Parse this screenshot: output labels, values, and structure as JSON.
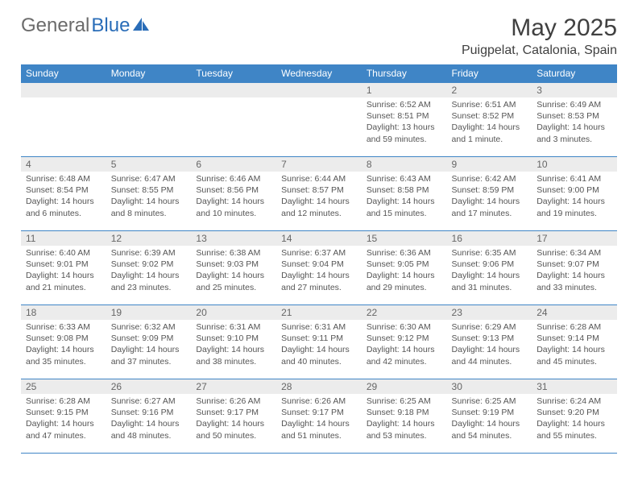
{
  "logo": {
    "text1": "General",
    "text2": "Blue"
  },
  "title": "May 2025",
  "location": "Puigpelat, Catalonia, Spain",
  "colors": {
    "header_bg": "#3f85c6",
    "header_text": "#ffffff",
    "daynum_bg": "#ececec",
    "daynum_text": "#666666",
    "border": "#3f85c6",
    "body_text": "#555555",
    "logo_gray": "#6b6b6b",
    "logo_blue": "#2a6db8",
    "title_color": "#404040"
  },
  "weekdays": [
    "Sunday",
    "Monday",
    "Tuesday",
    "Wednesday",
    "Thursday",
    "Friday",
    "Saturday"
  ],
  "weeks": [
    [
      null,
      null,
      null,
      null,
      {
        "n": "1",
        "sr": "Sunrise: 6:52 AM",
        "ss": "Sunset: 8:51 PM",
        "d1": "Daylight: 13 hours",
        "d2": "and 59 minutes."
      },
      {
        "n": "2",
        "sr": "Sunrise: 6:51 AM",
        "ss": "Sunset: 8:52 PM",
        "d1": "Daylight: 14 hours",
        "d2": "and 1 minute."
      },
      {
        "n": "3",
        "sr": "Sunrise: 6:49 AM",
        "ss": "Sunset: 8:53 PM",
        "d1": "Daylight: 14 hours",
        "d2": "and 3 minutes."
      }
    ],
    [
      {
        "n": "4",
        "sr": "Sunrise: 6:48 AM",
        "ss": "Sunset: 8:54 PM",
        "d1": "Daylight: 14 hours",
        "d2": "and 6 minutes."
      },
      {
        "n": "5",
        "sr": "Sunrise: 6:47 AM",
        "ss": "Sunset: 8:55 PM",
        "d1": "Daylight: 14 hours",
        "d2": "and 8 minutes."
      },
      {
        "n": "6",
        "sr": "Sunrise: 6:46 AM",
        "ss": "Sunset: 8:56 PM",
        "d1": "Daylight: 14 hours",
        "d2": "and 10 minutes."
      },
      {
        "n": "7",
        "sr": "Sunrise: 6:44 AM",
        "ss": "Sunset: 8:57 PM",
        "d1": "Daylight: 14 hours",
        "d2": "and 12 minutes."
      },
      {
        "n": "8",
        "sr": "Sunrise: 6:43 AM",
        "ss": "Sunset: 8:58 PM",
        "d1": "Daylight: 14 hours",
        "d2": "and 15 minutes."
      },
      {
        "n": "9",
        "sr": "Sunrise: 6:42 AM",
        "ss": "Sunset: 8:59 PM",
        "d1": "Daylight: 14 hours",
        "d2": "and 17 minutes."
      },
      {
        "n": "10",
        "sr": "Sunrise: 6:41 AM",
        "ss": "Sunset: 9:00 PM",
        "d1": "Daylight: 14 hours",
        "d2": "and 19 minutes."
      }
    ],
    [
      {
        "n": "11",
        "sr": "Sunrise: 6:40 AM",
        "ss": "Sunset: 9:01 PM",
        "d1": "Daylight: 14 hours",
        "d2": "and 21 minutes."
      },
      {
        "n": "12",
        "sr": "Sunrise: 6:39 AM",
        "ss": "Sunset: 9:02 PM",
        "d1": "Daylight: 14 hours",
        "d2": "and 23 minutes."
      },
      {
        "n": "13",
        "sr": "Sunrise: 6:38 AM",
        "ss": "Sunset: 9:03 PM",
        "d1": "Daylight: 14 hours",
        "d2": "and 25 minutes."
      },
      {
        "n": "14",
        "sr": "Sunrise: 6:37 AM",
        "ss": "Sunset: 9:04 PM",
        "d1": "Daylight: 14 hours",
        "d2": "and 27 minutes."
      },
      {
        "n": "15",
        "sr": "Sunrise: 6:36 AM",
        "ss": "Sunset: 9:05 PM",
        "d1": "Daylight: 14 hours",
        "d2": "and 29 minutes."
      },
      {
        "n": "16",
        "sr": "Sunrise: 6:35 AM",
        "ss": "Sunset: 9:06 PM",
        "d1": "Daylight: 14 hours",
        "d2": "and 31 minutes."
      },
      {
        "n": "17",
        "sr": "Sunrise: 6:34 AM",
        "ss": "Sunset: 9:07 PM",
        "d1": "Daylight: 14 hours",
        "d2": "and 33 minutes."
      }
    ],
    [
      {
        "n": "18",
        "sr": "Sunrise: 6:33 AM",
        "ss": "Sunset: 9:08 PM",
        "d1": "Daylight: 14 hours",
        "d2": "and 35 minutes."
      },
      {
        "n": "19",
        "sr": "Sunrise: 6:32 AM",
        "ss": "Sunset: 9:09 PM",
        "d1": "Daylight: 14 hours",
        "d2": "and 37 minutes."
      },
      {
        "n": "20",
        "sr": "Sunrise: 6:31 AM",
        "ss": "Sunset: 9:10 PM",
        "d1": "Daylight: 14 hours",
        "d2": "and 38 minutes."
      },
      {
        "n": "21",
        "sr": "Sunrise: 6:31 AM",
        "ss": "Sunset: 9:11 PM",
        "d1": "Daylight: 14 hours",
        "d2": "and 40 minutes."
      },
      {
        "n": "22",
        "sr": "Sunrise: 6:30 AM",
        "ss": "Sunset: 9:12 PM",
        "d1": "Daylight: 14 hours",
        "d2": "and 42 minutes."
      },
      {
        "n": "23",
        "sr": "Sunrise: 6:29 AM",
        "ss": "Sunset: 9:13 PM",
        "d1": "Daylight: 14 hours",
        "d2": "and 44 minutes."
      },
      {
        "n": "24",
        "sr": "Sunrise: 6:28 AM",
        "ss": "Sunset: 9:14 PM",
        "d1": "Daylight: 14 hours",
        "d2": "and 45 minutes."
      }
    ],
    [
      {
        "n": "25",
        "sr": "Sunrise: 6:28 AM",
        "ss": "Sunset: 9:15 PM",
        "d1": "Daylight: 14 hours",
        "d2": "and 47 minutes."
      },
      {
        "n": "26",
        "sr": "Sunrise: 6:27 AM",
        "ss": "Sunset: 9:16 PM",
        "d1": "Daylight: 14 hours",
        "d2": "and 48 minutes."
      },
      {
        "n": "27",
        "sr": "Sunrise: 6:26 AM",
        "ss": "Sunset: 9:17 PM",
        "d1": "Daylight: 14 hours",
        "d2": "and 50 minutes."
      },
      {
        "n": "28",
        "sr": "Sunrise: 6:26 AM",
        "ss": "Sunset: 9:17 PM",
        "d1": "Daylight: 14 hours",
        "d2": "and 51 minutes."
      },
      {
        "n": "29",
        "sr": "Sunrise: 6:25 AM",
        "ss": "Sunset: 9:18 PM",
        "d1": "Daylight: 14 hours",
        "d2": "and 53 minutes."
      },
      {
        "n": "30",
        "sr": "Sunrise: 6:25 AM",
        "ss": "Sunset: 9:19 PM",
        "d1": "Daylight: 14 hours",
        "d2": "and 54 minutes."
      },
      {
        "n": "31",
        "sr": "Sunrise: 6:24 AM",
        "ss": "Sunset: 9:20 PM",
        "d1": "Daylight: 14 hours",
        "d2": "and 55 minutes."
      }
    ]
  ]
}
